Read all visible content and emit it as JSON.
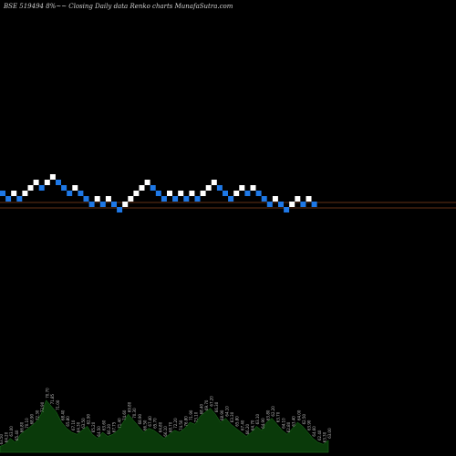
{
  "chart_data": {
    "type": "renko",
    "title": "BSE 519494  8%~~  Closing Daily data  Renko  charts MunafaSutra.com",
    "colors": {
      "background": "#000000",
      "up_brick": "#ffffff",
      "down_brick": "#1e78e6",
      "reference_line": "#c8642d",
      "volume_fill": "#0a3a0a",
      "volume_stroke": "#1f7a1f"
    },
    "bricks": [
      {
        "level": 2,
        "dir": "down"
      },
      {
        "level": 1,
        "dir": "down"
      },
      {
        "level": 2,
        "dir": "up"
      },
      {
        "level": 1,
        "dir": "down"
      },
      {
        "level": 2,
        "dir": "up"
      },
      {
        "level": 3,
        "dir": "up"
      },
      {
        "level": 4,
        "dir": "up"
      },
      {
        "level": 3,
        "dir": "down"
      },
      {
        "level": 4,
        "dir": "up"
      },
      {
        "level": 5,
        "dir": "up"
      },
      {
        "level": 4,
        "dir": "down"
      },
      {
        "level": 3,
        "dir": "down"
      },
      {
        "level": 2,
        "dir": "down"
      },
      {
        "level": 3,
        "dir": "up"
      },
      {
        "level": 2,
        "dir": "down"
      },
      {
        "level": 1,
        "dir": "down"
      },
      {
        "level": 0,
        "dir": "down"
      },
      {
        "level": 1,
        "dir": "up"
      },
      {
        "level": 0,
        "dir": "down"
      },
      {
        "level": 1,
        "dir": "up"
      },
      {
        "level": 0,
        "dir": "down"
      },
      {
        "level": -1,
        "dir": "down"
      },
      {
        "level": 0,
        "dir": "up"
      },
      {
        "level": 1,
        "dir": "up"
      },
      {
        "level": 2,
        "dir": "up"
      },
      {
        "level": 3,
        "dir": "up"
      },
      {
        "level": 4,
        "dir": "up"
      },
      {
        "level": 3,
        "dir": "down"
      },
      {
        "level": 2,
        "dir": "down"
      },
      {
        "level": 1,
        "dir": "down"
      },
      {
        "level": 2,
        "dir": "up"
      },
      {
        "level": 1,
        "dir": "down"
      },
      {
        "level": 2,
        "dir": "up"
      },
      {
        "level": 1,
        "dir": "down"
      },
      {
        "level": 2,
        "dir": "up"
      },
      {
        "level": 1,
        "dir": "down"
      },
      {
        "level": 2,
        "dir": "up"
      },
      {
        "level": 3,
        "dir": "up"
      },
      {
        "level": 4,
        "dir": "up"
      },
      {
        "level": 3,
        "dir": "down"
      },
      {
        "level": 2,
        "dir": "down"
      },
      {
        "level": 1,
        "dir": "down"
      },
      {
        "level": 2,
        "dir": "up"
      },
      {
        "level": 3,
        "dir": "up"
      },
      {
        "level": 2,
        "dir": "down"
      },
      {
        "level": 3,
        "dir": "up"
      },
      {
        "level": 2,
        "dir": "down"
      },
      {
        "level": 1,
        "dir": "down"
      },
      {
        "level": 0,
        "dir": "down"
      },
      {
        "level": 1,
        "dir": "up"
      },
      {
        "level": 0,
        "dir": "down"
      },
      {
        "level": -1,
        "dir": "down"
      },
      {
        "level": 0,
        "dir": "up"
      },
      {
        "level": 1,
        "dir": "up"
      },
      {
        "level": 0,
        "dir": "down"
      },
      {
        "level": 1,
        "dir": "up"
      },
      {
        "level": 0,
        "dir": "down"
      }
    ],
    "volume": {
      "values": [
        6,
        8,
        14,
        10,
        18,
        22,
        26,
        30,
        38,
        52,
        46,
        40,
        30,
        24,
        20,
        18,
        22,
        26,
        18,
        14,
        20,
        16,
        18,
        22,
        30,
        38,
        32,
        26,
        20,
        24,
        22,
        18,
        14,
        18,
        22,
        20,
        24,
        30,
        28,
        36,
        40,
        44,
        38,
        30,
        34,
        28,
        24,
        20,
        16,
        20,
        26,
        22,
        30,
        34,
        28,
        22,
        18,
        24,
        30,
        26,
        20,
        14,
        10,
        8,
        12
      ],
      "labels": [
        "63.50",
        "64.20",
        "63.00",
        "65.40",
        "66.80",
        "70.10",
        "68.90",
        "72.30",
        "73.90",
        "70.70",
        "71.85",
        "71.00",
        "68.40",
        "65.80",
        "67.10",
        "64.30",
        "63.50",
        "62.90",
        "65.20",
        "64.50",
        "63.60",
        "66.20",
        "67.75",
        "71.40",
        "74.60",
        "69.80",
        "70.30",
        "68.90",
        "66.50",
        "67.40",
        "65.70",
        "64.80",
        "66.10",
        "68.70",
        "72.20",
        "74.50",
        "76.80",
        "71.90",
        "73.10",
        "68.40",
        "69.70",
        "67.20",
        "66.30",
        "68.90",
        "64.10",
        "63.30",
        "65.80",
        "67.40",
        "66.20",
        "64.70",
        "63.10",
        "64.90",
        "63.80",
        "62.20",
        "63.70",
        "64.10",
        "62.80",
        "63.40",
        "64.00",
        "62.50",
        "63.90",
        "64.60",
        "62.40",
        "63.30",
        "63.00"
      ]
    }
  }
}
